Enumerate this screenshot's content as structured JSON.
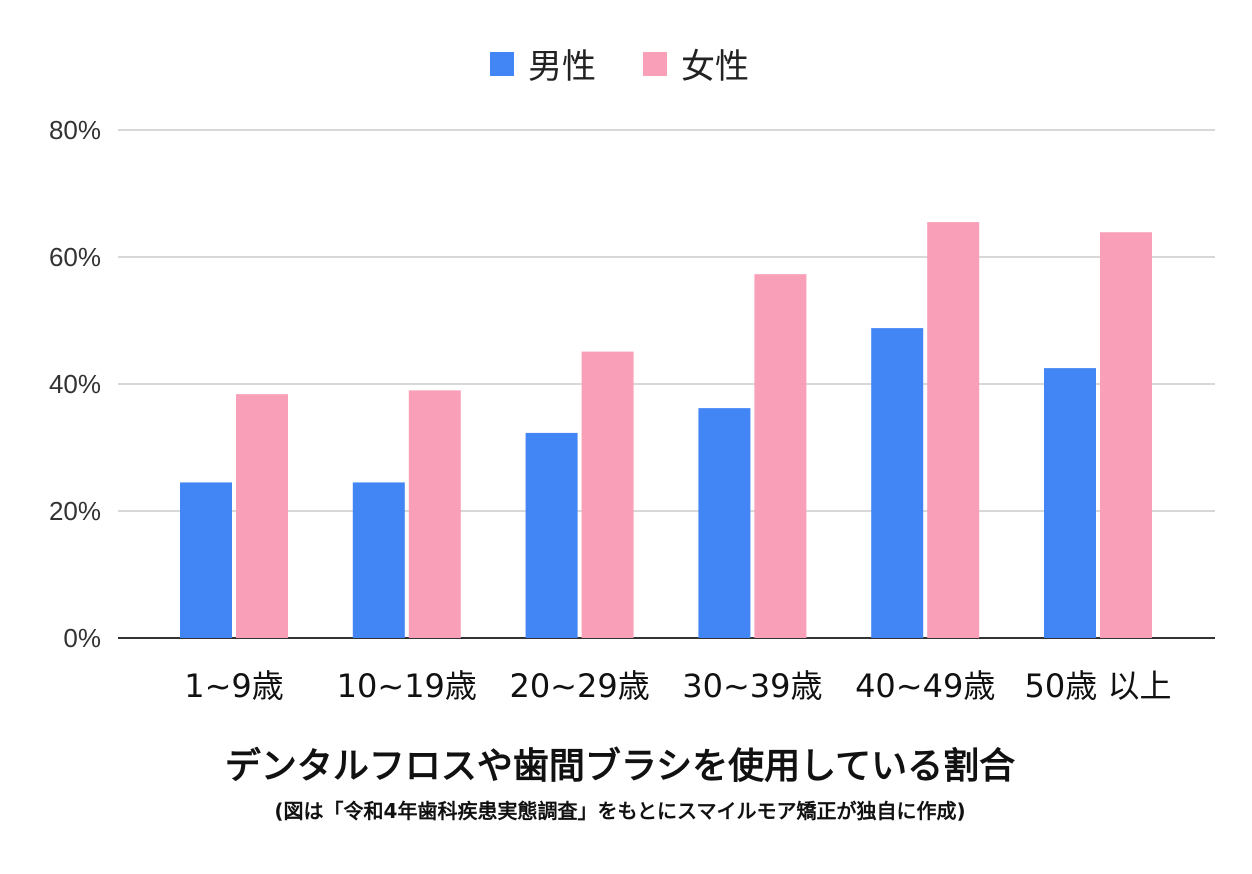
{
  "chart_data": {
    "type": "bar",
    "title": "デンタルフロスや歯間ブラシを使用している割合",
    "subtitle": "(図は「令和4年歯科疾患実態調査」をもとにスマイルモア矯正が独自に作成)",
    "categories": [
      "1~9歳",
      "10~19歳",
      "20~29歳",
      "30~39歳",
      "40~49歳",
      "50歳 以上"
    ],
    "series": [
      {
        "name": "男性",
        "color": "#4285f4",
        "values": [
          24.5,
          24.5,
          32.3,
          36.2,
          48.8,
          42.5
        ]
      },
      {
        "name": "女性",
        "color": "#f9a0b8",
        "values": [
          38.4,
          39.0,
          45.1,
          57.3,
          65.5,
          63.9
        ]
      }
    ],
    "yticks": [
      "0%",
      "20%",
      "40%",
      "60%",
      "80%"
    ],
    "ytick_values": [
      0,
      20,
      40,
      60,
      80
    ],
    "ylim": [
      0,
      80
    ],
    "grid": true,
    "legend_position": "top-center",
    "gridline_color": "#cccccc",
    "axis_color": "#333333"
  }
}
